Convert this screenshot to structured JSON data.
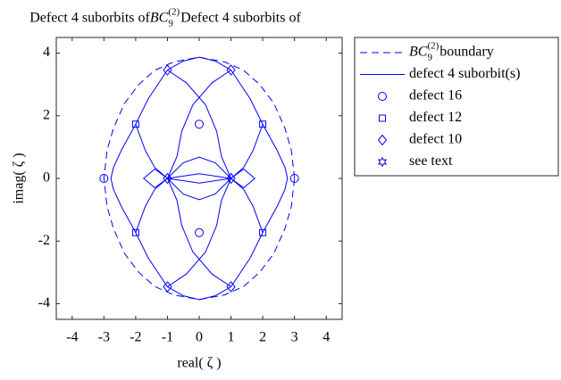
{
  "chart_data": {
    "type": "line",
    "title": {
      "text": "Defect 4 suborbits of ",
      "symbol": "BC",
      "sub": "9",
      "sup": "(2)"
    },
    "x_label": "real( ζ )",
    "y_label": "imag( ζ )",
    "xlim": [
      -4.5,
      4.5
    ],
    "ylim": [
      -4.5,
      4.5
    ],
    "xticks": [
      -4,
      -3,
      -2,
      -1,
      0,
      1,
      2,
      3,
      4
    ],
    "yticks": [
      -4,
      -2,
      0,
      2,
      4
    ],
    "legend": "outside-right",
    "series": [
      {
        "name": {
          "symbol": "BC",
          "sub": "9",
          "sup": "(2)",
          "text": " boundary"
        },
        "color": "#0000ff",
        "style": "dashed",
        "x": [
          3,
          2.9,
          2.7,
          2.35,
          1.9,
          1.4,
          0.8,
          0,
          -0.8,
          -1.4,
          -1.9,
          -2.35,
          -2.7,
          -2.9,
          -3,
          -2.9,
          -2.7,
          -2.35,
          -1.9,
          -1.4,
          -0.8,
          0,
          0.8,
          1.4,
          1.9,
          2.35,
          2.7,
          2.9,
          3
        ],
        "values": [
          0,
          0.9,
          1.6,
          2.4,
          3.0,
          3.45,
          3.72,
          3.87,
          3.72,
          3.45,
          3.0,
          2.4,
          1.6,
          0.9,
          0,
          -0.9,
          -1.6,
          -2.4,
          -3.0,
          -3.45,
          -3.72,
          -3.87,
          -3.72,
          -3.45,
          -3.0,
          -2.4,
          -1.6,
          -0.9,
          0
        ]
      },
      {
        "name": "defect 4 suborbit(s)",
        "color": "#0000ff",
        "style": "solid",
        "x": [
          1,
          1.6,
          2,
          2.45,
          2.7,
          2.78,
          2.7,
          2.45,
          2,
          1.6,
          1,
          null,
          -1,
          -1.6,
          -2,
          -2.45,
          -2.7,
          -2.78,
          -2.7,
          -2.45,
          -2,
          -1.6,
          -1,
          null,
          -1,
          -0.5,
          0,
          0.5,
          1,
          null,
          -1,
          -0.5,
          0,
          0.5,
          1,
          null,
          1,
          0.4,
          -0.2,
          -0.55,
          -0.7,
          -1,
          null,
          -1,
          -0.4,
          0.2,
          0.55,
          0.7,
          1,
          null,
          1,
          0.4,
          -0.2,
          -0.55,
          -0.7,
          -1,
          null,
          -1,
          -0.4,
          0.2,
          0.55,
          0.7,
          1,
          null,
          2,
          1.7,
          1.4,
          1,
          null,
          -2,
          -1.7,
          -1.4,
          -1,
          null,
          2,
          1.7,
          1.4,
          1,
          null,
          -2,
          -1.7,
          -1.4,
          -1,
          null,
          -1,
          -0.5,
          0,
          0.5,
          1,
          0.5,
          0,
          -0.5,
          -1,
          null,
          1,
          1.4,
          1.75,
          1.4,
          1,
          null,
          -1,
          -1.4,
          -1.75,
          -1.4,
          -1,
          null,
          -1,
          0,
          1,
          null,
          -1,
          0,
          1
        ],
        "values": [
          3.46,
          2.55,
          1.73,
          0.9,
          0.35,
          0,
          -0.35,
          -0.9,
          -1.73,
          -2.55,
          -3.46,
          null,
          3.46,
          2.55,
          1.73,
          0.9,
          0.35,
          0,
          -0.35,
          -0.9,
          -1.73,
          -2.55,
          -3.46,
          null,
          3.46,
          3.75,
          3.87,
          3.75,
          3.46,
          null,
          -3.46,
          -3.75,
          -3.87,
          -3.75,
          -3.46,
          null,
          3.46,
          3.05,
          2.35,
          1.5,
          0.7,
          0,
          null,
          3.46,
          3.05,
          2.35,
          1.5,
          0.7,
          0,
          null,
          -3.46,
          -3.05,
          -2.35,
          -1.5,
          -0.7,
          0,
          null,
          -3.46,
          -3.05,
          -2.35,
          -1.5,
          -0.7,
          0,
          null,
          1.73,
          0.9,
          0.35,
          0,
          null,
          1.73,
          0.9,
          0.35,
          0,
          null,
          -1.73,
          -0.9,
          -0.35,
          0,
          null,
          -1.73,
          -0.9,
          -0.35,
          0,
          null,
          0,
          0.5,
          0.68,
          0.5,
          0,
          -0.5,
          -0.68,
          -0.5,
          0,
          null,
          0,
          0.3,
          0,
          -0.3,
          0,
          null,
          0,
          0.3,
          0,
          -0.3,
          0,
          null,
          0,
          0.15,
          0,
          null,
          0,
          -0.15,
          0
        ]
      },
      {
        "name": "defect 16",
        "color": "#0000ff",
        "marker": "circle",
        "x": [
          0,
          0,
          3,
          -3
        ],
        "values": [
          1.73,
          -1.73,
          0,
          0
        ]
      },
      {
        "name": "defect 12",
        "color": "#0000ff",
        "marker": "square",
        "x": [
          2,
          -2,
          2,
          -2
        ],
        "values": [
          1.73,
          1.73,
          -1.73,
          -1.73
        ]
      },
      {
        "name": "defect 10",
        "color": "#0000ff",
        "marker": "diamond",
        "x": [
          1,
          -1,
          1,
          -1,
          1,
          -1
        ],
        "values": [
          3.46,
          3.46,
          -3.46,
          -3.46,
          0,
          0
        ]
      },
      {
        "name": "see text",
        "color": "#0000ff",
        "marker": "hexagram",
        "x": [],
        "values": []
      }
    ]
  }
}
